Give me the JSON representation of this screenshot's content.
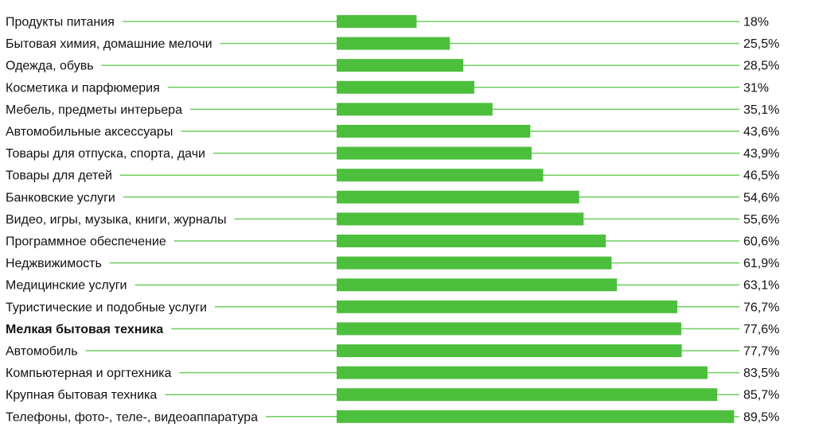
{
  "chart_data": {
    "type": "bar",
    "orientation": "horizontal",
    "title": "",
    "xlabel": "",
    "ylabel": "",
    "xlim": [
      0,
      100
    ],
    "grid": false,
    "legend": "none",
    "bar_color": "#4cbf3c",
    "leader_color": "#6ccf5c",
    "categories": [
      "Продукты питания",
      "Бытовая химия, домашние мелочи",
      "Одежда, обувь",
      "Косметика и парфюмерия",
      "Мебель, предметы интерьера",
      "Автомобильные аксессуары",
      "Товары для отпуска, спорта, дачи",
      "Товары для детей",
      "Банковские услуги",
      "Видео, игры, музыка, книги, журналы",
      "Программное обеспечение",
      "Неджвижимость",
      "Медицинские услуги",
      "Туристические и подобные услуги",
      "Мелкая бытовая техника",
      "Автомобиль",
      "Компьютерная и оргтехника",
      "Крупная бытовая техника",
      "Телефоны, фото-, теле-, видеоаппаратура"
    ],
    "values": [
      18,
      25.5,
      28.5,
      31,
      35.1,
      43.6,
      43.9,
      46.5,
      54.6,
      55.6,
      60.6,
      61.9,
      63.1,
      76.7,
      77.6,
      77.7,
      83.5,
      85.7,
      89.5
    ],
    "value_labels": [
      "18%",
      "25,5%",
      "28,5%",
      "31%",
      "35,1%",
      "43,6%",
      "43,9%",
      "46,5%",
      "54,6%",
      "55,6%",
      "60,6%",
      "61,9%",
      "63,1%",
      "76,7%",
      "77,6%",
      "77,7%",
      "83,5%",
      "85,7%",
      "89,5%"
    ],
    "highlighted_category": "Мелкая бытовая техника"
  }
}
